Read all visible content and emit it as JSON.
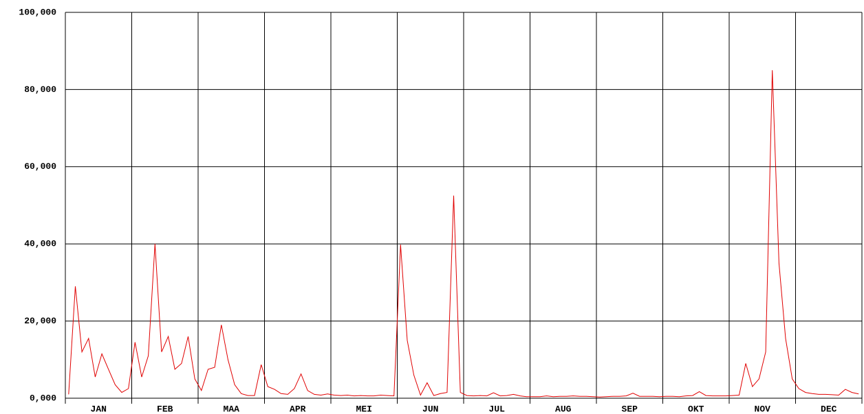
{
  "chart_data": {
    "type": "line",
    "categories": [
      "JAN",
      "FEB",
      "MAA",
      "APR",
      "MEI",
      "JUN",
      "JUL",
      "AUG",
      "SEP",
      "OKT",
      "NOV",
      "DEC"
    ],
    "series": [
      {
        "color": "#e00000",
        "values": [
          [
            1000,
            29000,
            12000,
            15500,
            5500,
            11500,
            7500,
            3500,
            1500,
            2500
          ],
          [
            14500,
            5500,
            11000,
            40000,
            12000,
            16000,
            7500,
            9000,
            16000,
            5000
          ],
          [
            2000,
            7500,
            8000,
            19000,
            10000,
            3500,
            1200,
            700,
            700,
            8700
          ],
          [
            3000,
            2300,
            1200,
            1000,
            2500,
            6300,
            2000,
            1000,
            800,
            1100
          ],
          [
            800,
            700,
            800,
            600,
            700,
            600,
            600,
            800,
            700,
            600
          ],
          [
            39800,
            15000,
            6000,
            800,
            4000,
            700,
            1200,
            1500,
            52500,
            1500
          ],
          [
            700,
            600,
            700,
            600,
            1400,
            600,
            700,
            1000,
            600,
            400
          ],
          [
            400,
            400,
            600,
            400,
            500,
            500,
            600,
            500,
            500,
            400
          ],
          [
            300,
            400,
            500,
            500,
            600,
            1300,
            500,
            500,
            500,
            400
          ],
          [
            500,
            500,
            400,
            600,
            700,
            1700,
            700,
            600,
            600,
            600
          ],
          [
            700,
            800,
            9000,
            3000,
            5000,
            12000,
            85000,
            35000,
            15500,
            5000
          ],
          [
            2500,
            1500,
            1200,
            1000,
            1000,
            900,
            800,
            2300,
            1500,
            1100
          ]
        ]
      }
    ],
    "ylim": [
      0,
      100000
    ],
    "yticks": [
      {
        "value": 0,
        "label": "0,000"
      },
      {
        "value": 20000,
        "label": "20,000"
      },
      {
        "value": 40000,
        "label": "40,000"
      },
      {
        "value": 60000,
        "label": "60,000"
      },
      {
        "value": 80000,
        "label": "80,000"
      },
      {
        "value": 100000,
        "label": "100,000"
      }
    ],
    "grid": true
  }
}
